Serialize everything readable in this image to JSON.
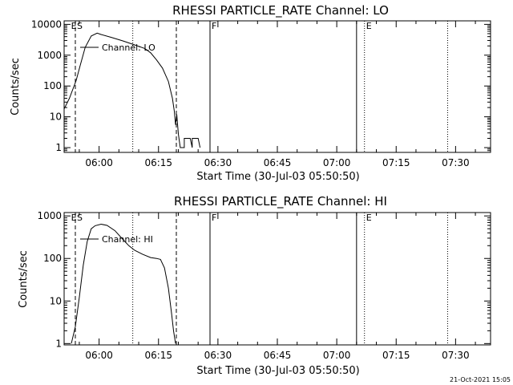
{
  "footer": {
    "timestamp": "21-Oct-2021 15:05"
  },
  "chart_data": [
    {
      "type": "line",
      "title": "RHESSI PARTICLE_RATE Channel: LO",
      "xlabel": "Start Time (30-Jul-03 05:50:50)",
      "ylabel": "Counts/sec",
      "yscale": "log",
      "xlim": [
        -8.83,
        98.83
      ],
      "ylim": [
        0.7,
        13000
      ],
      "xticks": [
        0,
        15,
        30,
        45,
        60,
        75,
        90
      ],
      "xticklabels": [
        "06:00",
        "06:15",
        "06:30",
        "06:45",
        "07:00",
        "07:15",
        "07:30"
      ],
      "yticks": [
        1,
        10,
        100,
        1000,
        10000
      ],
      "yticklabels": [
        "1",
        "10",
        "100",
        "1000",
        "10000"
      ],
      "legend": "Channel: LO",
      "markers": [
        {
          "x": -7.5,
          "label": "E",
          "style": "none"
        },
        {
          "x": -6.0,
          "label": "S",
          "style": "dashed"
        },
        {
          "x": 8.5,
          "label": "",
          "style": "dotted"
        },
        {
          "x": 19.5,
          "label": "",
          "style": "dashed"
        },
        {
          "x": 28.0,
          "label": "F",
          "style": "solid"
        },
        {
          "x": 65.0,
          "label": "",
          "style": "solid"
        },
        {
          "x": 67.0,
          "label": "E",
          "style": "dotted"
        },
        {
          "x": 88.0,
          "label": "",
          "style": "dotted"
        }
      ],
      "series": [
        {
          "name": "Channel: LO",
          "x": [
            -8.83,
            -7.5,
            -5.8,
            -4.8,
            -3.5,
            -2.0,
            -0.5,
            0.5,
            3.0,
            6.0,
            9.0,
            11.5,
            13.0,
            14.5,
            16.0,
            17.5,
            18.5,
            19.0,
            19.3,
            19.6,
            20.0,
            20.5,
            21.5,
            21.5,
            22.0,
            22.5,
            23.0,
            23.5,
            23.5,
            24.0,
            24.5,
            25.0,
            25.5
          ],
          "y": [
            18,
            40,
            150,
            450,
            1800,
            4200,
            5200,
            4700,
            3800,
            2900,
            2150,
            1650,
            1200,
            700,
            380,
            140,
            40,
            15,
            5.5,
            12,
            2.8,
            1,
            1,
            2,
            2,
            2,
            2,
            1,
            2,
            2,
            2,
            2,
            1
          ]
        }
      ]
    },
    {
      "type": "line",
      "title": "RHESSI PARTICLE_RATE Channel: HI",
      "xlabel": "Start Time (30-Jul-03 05:50:50)",
      "ylabel": "Counts/sec",
      "yscale": "log",
      "xlim": [
        -8.83,
        98.83
      ],
      "ylim": [
        0.93,
        1200
      ],
      "xticks": [
        0,
        15,
        30,
        45,
        60,
        75,
        90
      ],
      "xticklabels": [
        "06:00",
        "06:15",
        "06:30",
        "06:45",
        "07:00",
        "07:15",
        "07:30"
      ],
      "yticks": [
        1,
        10,
        100,
        1000
      ],
      "yticklabels": [
        "1",
        "10",
        "100",
        "1000"
      ],
      "legend": "Channel: HI",
      "markers": [
        {
          "x": -7.5,
          "label": "E",
          "style": "none"
        },
        {
          "x": -6.0,
          "label": "S",
          "style": "dashed"
        },
        {
          "x": 8.5,
          "label": "",
          "style": "dotted"
        },
        {
          "x": 19.5,
          "label": "",
          "style": "dashed"
        },
        {
          "x": 28.0,
          "label": "F",
          "style": "solid"
        },
        {
          "x": 65.0,
          "label": "",
          "style": "solid"
        },
        {
          "x": 67.0,
          "label": "E",
          "style": "dotted"
        },
        {
          "x": 88.0,
          "label": "",
          "style": "dotted"
        }
      ],
      "series": [
        {
          "name": "Channel: HI",
          "x": [
            -7.0,
            -6.0,
            -5.0,
            -4.0,
            -3.0,
            -2.0,
            -1.0,
            0.5,
            2.0,
            4.0,
            6.0,
            7.5,
            9.0,
            11.0,
            13.0,
            14.5,
            15.5,
            16.5,
            17.5,
            18.3,
            18.8,
            19.3
          ],
          "y": [
            1,
            2.5,
            12,
            70,
            250,
            500,
            590,
            640,
            600,
            450,
            280,
            200,
            155,
            125,
            105,
            100,
            95,
            60,
            20,
            5,
            2,
            1
          ]
        }
      ]
    }
  ]
}
